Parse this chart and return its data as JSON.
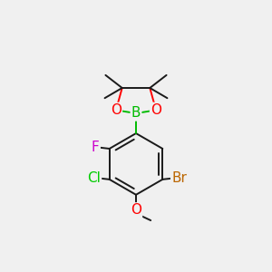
{
  "background_color": "#f0f0f0",
  "figsize": [
    3.0,
    3.0
  ],
  "dpi": 100,
  "bond_color": "#1a1a1a",
  "bond_colors": {
    "B": "#00bb00",
    "O": "#ff0000"
  },
  "atom_colors": {
    "B": "#00bb00",
    "O": "#ff0000",
    "F": "#cc00cc",
    "Cl": "#00cc00",
    "Br": "#bb6600",
    "C": "#1a1a1a"
  }
}
